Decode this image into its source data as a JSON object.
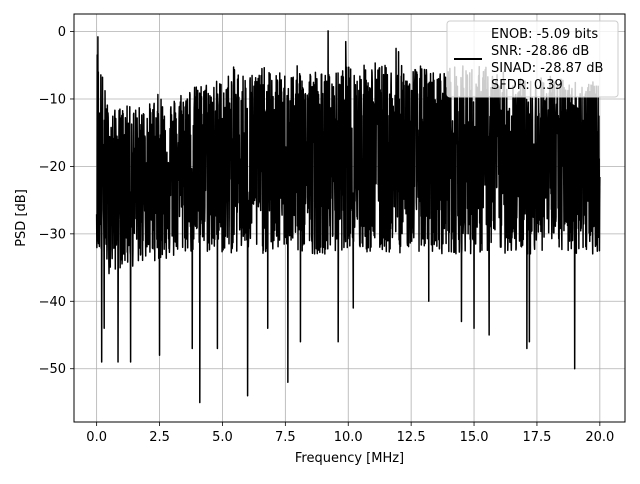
{
  "chart_data": {
    "type": "line",
    "title": "",
    "xlabel": "Frequency [MHz]",
    "ylabel": "PSD [dB]",
    "xlim": [
      -0.9,
      21.0
    ],
    "ylim": [
      -57.9,
      2.6
    ],
    "x_ticks": [
      0.0,
      2.5,
      5.0,
      7.5,
      10.0,
      12.5,
      15.0,
      17.5,
      20.0
    ],
    "x_tick_labels": [
      "0.0",
      "2.5",
      "5.0",
      "7.5",
      "10.0",
      "12.5",
      "15.0",
      "17.5",
      "20.0"
    ],
    "y_ticks": [
      0,
      -10,
      -20,
      -30,
      -40,
      -50
    ],
    "y_tick_labels": [
      "0",
      "−10",
      "−20",
      "−30",
      "−40",
      "−50"
    ],
    "grid": true,
    "legend_position": "top-right",
    "series": [
      {
        "color": "#000000",
        "x_range": [
          0.0,
          20.0
        ],
        "upper_envelope_db": [
          -0.8,
          -12,
          -11,
          -11,
          -11,
          -9,
          -10,
          -8,
          -8,
          -7,
          -7,
          -5,
          -6,
          -5,
          -6,
          -6,
          -5,
          -5,
          -6,
          -6,
          -5,
          -5,
          -4,
          -5,
          -5,
          -5,
          -5,
          -6,
          -5,
          -5,
          -5,
          -5,
          -6,
          -6,
          -7,
          -7,
          -6,
          -7,
          -7,
          -7,
          -8
        ],
        "median_db": [
          -24,
          -21,
          -21,
          -21,
          -20,
          -20,
          -20,
          -19,
          -19,
          -19,
          -19,
          -19,
          -19,
          -19,
          -19,
          -19,
          -19,
          -18,
          -19,
          -19,
          -18,
          -19,
          -19,
          -19,
          -19,
          -19,
          -19,
          -19,
          -19,
          -19,
          -19,
          -19,
          -19,
          -19,
          -19,
          -19,
          -19,
          -19,
          -19,
          -19,
          -19
        ],
        "lower_envelope_db": [
          -32,
          -36,
          -35,
          -35,
          -34,
          -34,
          -34,
          -33,
          -33,
          -33,
          -33,
          -33,
          -33,
          -33,
          -33,
          -32,
          -33,
          -33,
          -33,
          -33,
          -32,
          -33,
          -33,
          -33,
          -33,
          -32,
          -33,
          -33,
          -33,
          -33,
          -33,
          -33,
          -33,
          -33,
          -33,
          -33,
          -32,
          -33,
          -33,
          -33,
          -33
        ],
        "peaks": [
          {
            "x": 0.05,
            "y": -0.8
          },
          {
            "x": 9.2,
            "y": 0.1
          },
          {
            "x": 9.9,
            "y": -1.5
          },
          {
            "x": 11.9,
            "y": -2.5
          },
          {
            "x": 12.0,
            "y": -3.0
          }
        ],
        "dips": [
          {
            "x": 0.2,
            "y": -49
          },
          {
            "x": 0.3,
            "y": -44
          },
          {
            "x": 0.85,
            "y": -49
          },
          {
            "x": 1.35,
            "y": -49
          },
          {
            "x": 2.5,
            "y": -48
          },
          {
            "x": 3.8,
            "y": -47
          },
          {
            "x": 4.1,
            "y": -55
          },
          {
            "x": 4.8,
            "y": -47
          },
          {
            "x": 6.0,
            "y": -54
          },
          {
            "x": 6.8,
            "y": -44
          },
          {
            "x": 7.6,
            "y": -52
          },
          {
            "x": 8.1,
            "y": -46
          },
          {
            "x": 9.6,
            "y": -46
          },
          {
            "x": 10.2,
            "y": -41
          },
          {
            "x": 13.2,
            "y": -40
          },
          {
            "x": 14.5,
            "y": -43
          },
          {
            "x": 15.0,
            "y": -44
          },
          {
            "x": 15.6,
            "y": -45
          },
          {
            "x": 17.1,
            "y": -47
          },
          {
            "x": 17.2,
            "y": -46
          },
          {
            "x": 19.0,
            "y": -50
          }
        ]
      }
    ]
  },
  "legend": {
    "line1": "ENOB: -5.09 bits",
    "line2": "SNR: -28.86 dB",
    "line3": "SINAD: -28.87 dB",
    "line4": "SFDR: 0.39"
  }
}
